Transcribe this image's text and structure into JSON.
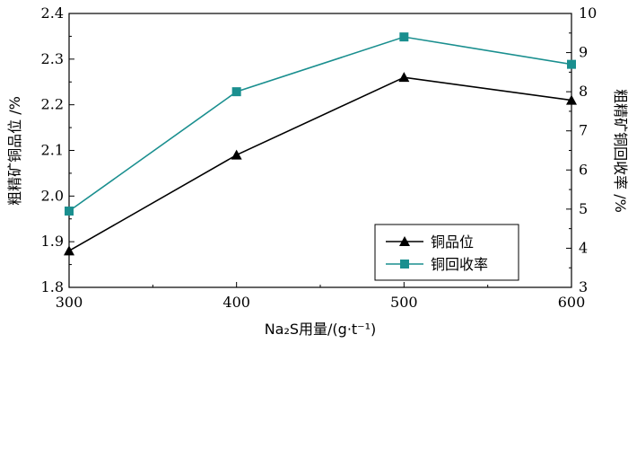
{
  "chart_data": {
    "type": "line",
    "x": [
      300,
      400,
      500,
      600
    ],
    "xlabel": "Na₂S用量/(g·t⁻¹)",
    "xticks": [
      "300",
      "400",
      "500",
      "600"
    ],
    "xlim": [
      300,
      600
    ],
    "ylabel_left": "粗精矿铜品位 /%",
    "ylabel_right": "粗精矿铜回收率 /%",
    "ylim_left": [
      1.8,
      2.4
    ],
    "ylim_right": [
      3,
      10
    ],
    "yticks_left": [
      "1.8",
      "1.9",
      "2.0",
      "2.1",
      "2.2",
      "2.3",
      "2.4"
    ],
    "yticks_right": [
      "3",
      "4",
      "5",
      "6",
      "7",
      "8",
      "9",
      "10"
    ],
    "legend_position": "bottom-right",
    "grid": false,
    "series": [
      {
        "name": "铜品位",
        "axis": "left",
        "marker": "triangle",
        "color": "#000000",
        "values": [
          1.88,
          2.09,
          2.26,
          2.21
        ]
      },
      {
        "name": "铜回收率",
        "axis": "right",
        "marker": "square",
        "color": "#1a8f8f",
        "values": [
          4.95,
          8.0,
          9.4,
          8.7
        ]
      }
    ]
  }
}
